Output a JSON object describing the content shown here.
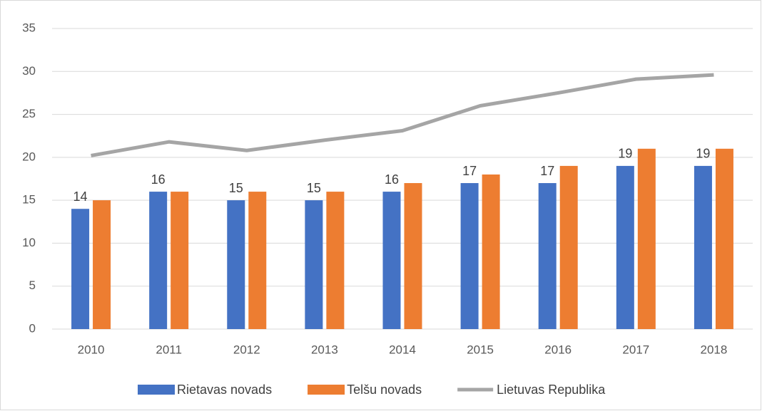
{
  "chart_data": {
    "type": "bar",
    "categories": [
      "2010",
      "2011",
      "2012",
      "2013",
      "2014",
      "2015",
      "2016",
      "2017",
      "2018"
    ],
    "series": [
      {
        "name": "Rietavas novads",
        "type": "bar",
        "color": "#4472c4",
        "data_labels": true,
        "values": [
          14,
          16,
          15,
          15,
          16,
          17,
          17,
          19,
          19
        ]
      },
      {
        "name": "Telšu novads",
        "type": "bar",
        "color": "#ed7d31",
        "values": [
          15,
          16,
          16,
          16,
          17,
          18,
          19,
          21,
          21
        ]
      },
      {
        "name": "Lietuvas Republika",
        "type": "line",
        "color": "#a5a5a5",
        "values": [
          20.2,
          21.8,
          20.8,
          22,
          23.1,
          26,
          27.5,
          29.1,
          29.6
        ]
      }
    ],
    "ylim": [
      0,
      35
    ],
    "yticks": [
      0,
      5,
      10,
      15,
      20,
      25,
      30,
      35
    ],
    "grid": true,
    "legend": "bottom"
  }
}
